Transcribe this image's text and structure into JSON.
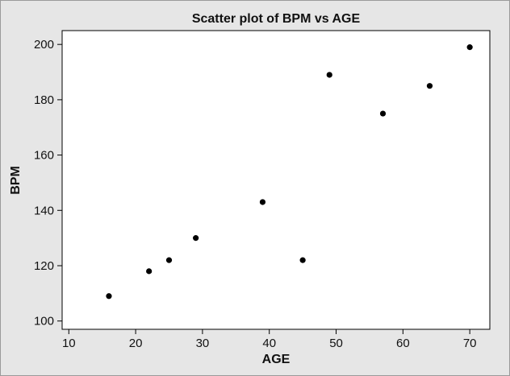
{
  "chart_data": {
    "type": "scatter",
    "title": "Scatter plot of BPM vs AGE",
    "xlabel": "AGE",
    "ylabel": "BPM",
    "xlim": [
      9,
      73
    ],
    "ylim": [
      97,
      205
    ],
    "xticks": [
      10,
      20,
      30,
      40,
      50,
      60,
      70
    ],
    "yticks": [
      100,
      120,
      140,
      160,
      180,
      200
    ],
    "grid": false,
    "legend": "none",
    "colors": {
      "background": "#e6e6e6",
      "plot_area": "#ffffff",
      "marker": "#000000"
    },
    "points": [
      {
        "x": 16,
        "y": 109
      },
      {
        "x": 22,
        "y": 118
      },
      {
        "x": 25,
        "y": 122
      },
      {
        "x": 29,
        "y": 130
      },
      {
        "x": 39,
        "y": 143
      },
      {
        "x": 45,
        "y": 122
      },
      {
        "x": 49,
        "y": 189
      },
      {
        "x": 57,
        "y": 175
      },
      {
        "x": 64,
        "y": 185
      },
      {
        "x": 70,
        "y": 199
      }
    ]
  }
}
